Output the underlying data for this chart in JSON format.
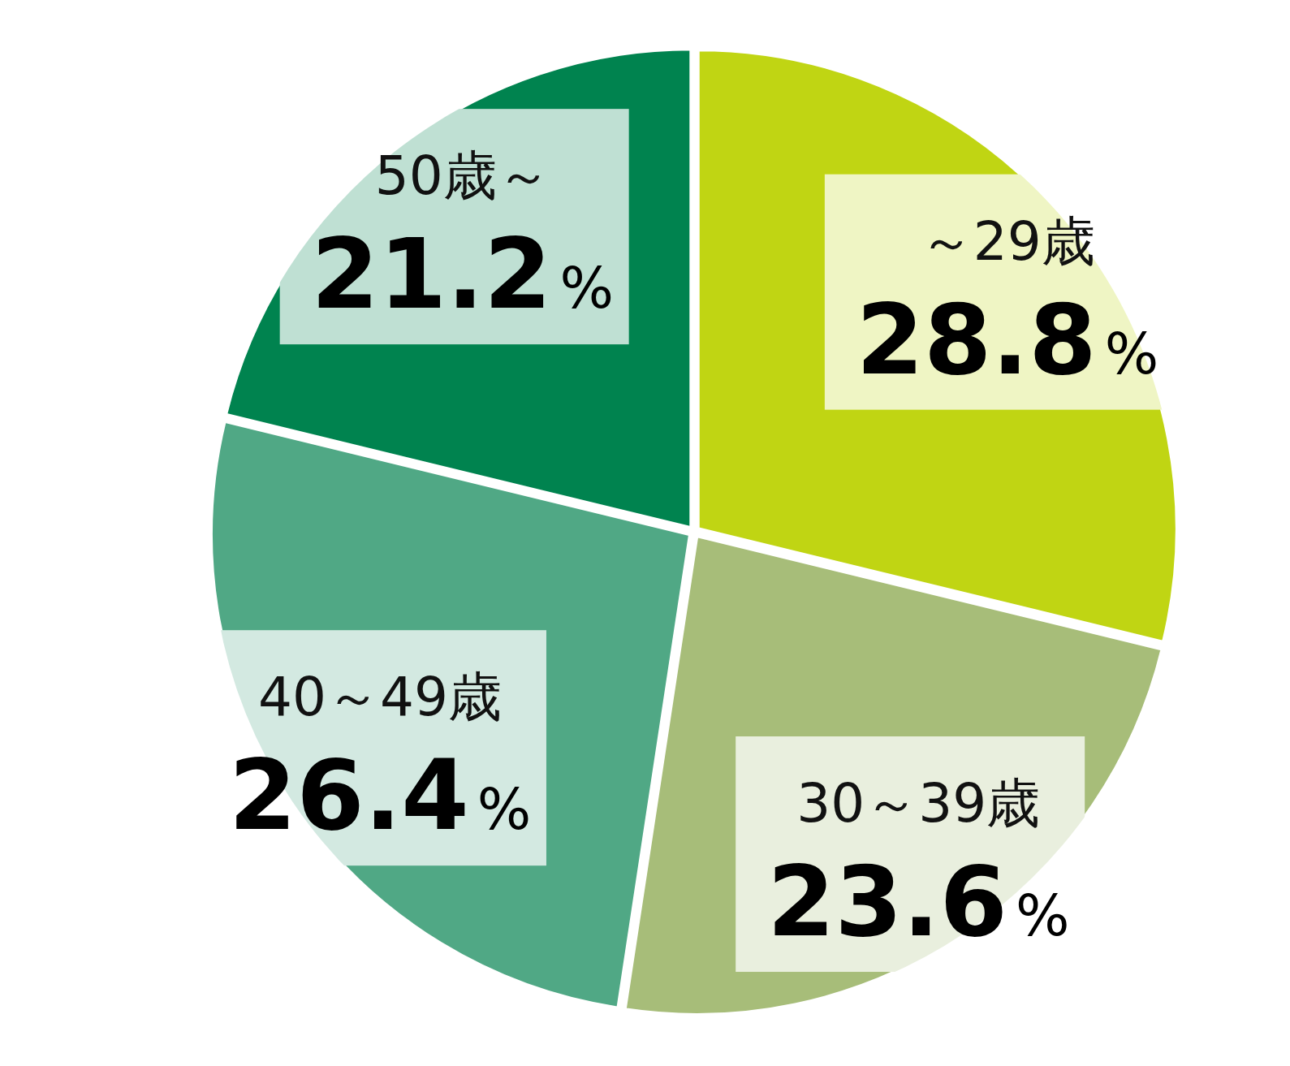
{
  "chart_data": {
    "type": "pie",
    "categories": [
      "～29歳",
      "30～39歳",
      "40～49歳",
      "50歳～"
    ],
    "values": [
      28.8,
      23.6,
      26.4,
      21.2
    ],
    "colors": [
      "#c0d513",
      "#a7bd79",
      "#50a885",
      "#00834f"
    ],
    "value_labels": [
      "28.8%",
      "23.6%",
      "26.4%",
      "21.2%"
    ]
  }
}
